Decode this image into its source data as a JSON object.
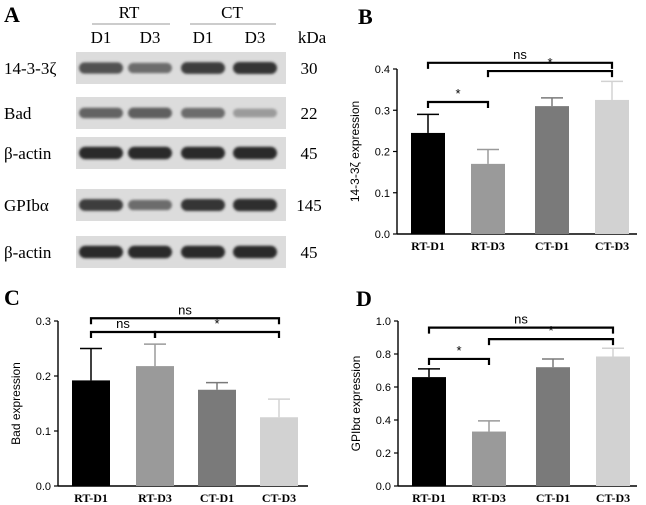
{
  "panels": {
    "A": "A",
    "B": "B",
    "C": "C",
    "D": "D"
  },
  "blot": {
    "groups": [
      "RT",
      "CT"
    ],
    "lanes": [
      "D1",
      "D3",
      "D1",
      "D3"
    ],
    "unit": "kDa",
    "rows": [
      {
        "protein": "14-3-3ζ",
        "mw": "30",
        "intensity": [
          0.7,
          0.55,
          0.8,
          0.85
        ]
      },
      {
        "protein": "Bad",
        "mw": "22",
        "intensity": [
          0.6,
          0.62,
          0.55,
          0.3
        ]
      },
      {
        "protein": "β-actin",
        "mw": "45",
        "intensity": [
          0.9,
          0.9,
          0.9,
          0.9
        ]
      },
      {
        "protein": "GPIbα",
        "mw": "145",
        "intensity": [
          0.8,
          0.55,
          0.85,
          0.88
        ]
      },
      {
        "protein": "β-actin",
        "mw": "45",
        "intensity": [
          0.9,
          0.9,
          0.9,
          0.9
        ]
      }
    ]
  },
  "bar_colors": [
    "#000000",
    "#9a9a9a",
    "#7a7a7a",
    "#d2d2d2"
  ],
  "chart_data": [
    {
      "panel": "B",
      "type": "bar",
      "categories": [
        "RT-D1",
        "RT-D3",
        "CT-D1",
        "CT-D3"
      ],
      "values": [
        0.245,
        0.17,
        0.31,
        0.325
      ],
      "errors": [
        0.045,
        0.035,
        0.02,
        0.045
      ],
      "ylabel": "14-3-3ζ expression",
      "ylim": [
        0,
        0.4
      ],
      "yticks": [
        "0.0",
        "0.1",
        "0.2",
        "0.3",
        "0.4"
      ],
      "significance": [
        {
          "from": 0,
          "to": 3,
          "y": 0.415,
          "label": "ns"
        },
        {
          "from": 0,
          "to": 1,
          "y": 0.32,
          "label": "*"
        },
        {
          "from": 1,
          "to": 3,
          "y": 0.395,
          "label": "*"
        }
      ]
    },
    {
      "panel": "C",
      "type": "bar",
      "categories": [
        "RT-D1",
        "RT-D3",
        "CT-D1",
        "CT-D3"
      ],
      "values": [
        0.192,
        0.218,
        0.175,
        0.125
      ],
      "errors": [
        0.058,
        0.04,
        0.013,
        0.033
      ],
      "ylabel": "Bad expression",
      "ylim": [
        0,
        0.3
      ],
      "yticks": [
        "0.0",
        "0.1",
        "0.2",
        "0.3"
      ],
      "significance": [
        {
          "from": 0,
          "to": 3,
          "y": 0.305,
          "label": "ns"
        },
        {
          "from": 0,
          "to": 1,
          "y": 0.28,
          "label": "ns"
        },
        {
          "from": 1,
          "to": 3,
          "y": 0.28,
          "label": "*"
        }
      ]
    },
    {
      "panel": "D",
      "type": "bar",
      "categories": [
        "RT-D1",
        "RT-D3",
        "CT-D1",
        "CT-D3"
      ],
      "values": [
        0.66,
        0.33,
        0.72,
        0.785
      ],
      "errors": [
        0.05,
        0.065,
        0.05,
        0.05
      ],
      "ylabel": "GPIbα expression",
      "ylim": [
        0,
        1.0
      ],
      "yticks": [
        "0.0",
        "0.2",
        "0.4",
        "0.6",
        "0.8",
        "1.0"
      ],
      "significance": [
        {
          "from": 0,
          "to": 3,
          "y": 0.96,
          "label": "ns"
        },
        {
          "from": 0,
          "to": 1,
          "y": 0.77,
          "label": "*"
        },
        {
          "from": 1,
          "to": 3,
          "y": 0.89,
          "label": "*"
        }
      ]
    }
  ]
}
